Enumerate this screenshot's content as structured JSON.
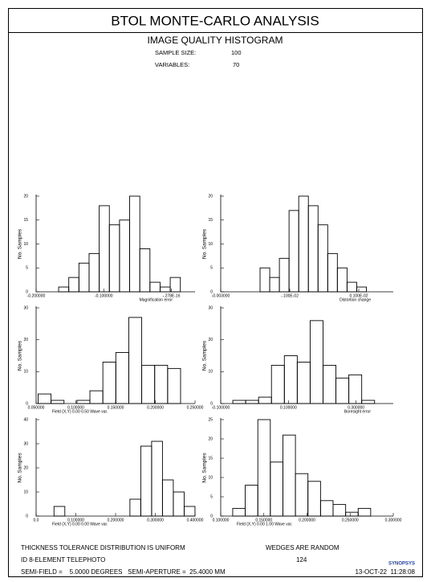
{
  "header": {
    "title": "BTOL MONTE-CARLO ANALYSIS",
    "subtitle": "IMAGE QUALITY HISTOGRAM",
    "sample_size_label": "SAMPLE SIZE:",
    "sample_size": 100,
    "variables_label": "VARIABLES:",
    "variables": 70
  },
  "chart_data": [
    {
      "type": "histogram",
      "xlabel": "Magnification error",
      "ylabel": "No. Samples",
      "bins": [
        -0.1667,
        -0.1517,
        -0.1367,
        -0.1217,
        -0.1067,
        -0.0917,
        -0.0767,
        -0.0617,
        -0.0467,
        -0.0317,
        -0.0167,
        -0.0017,
        0.0133
      ],
      "values": [
        1,
        3,
        6,
        8,
        18,
        14,
        15,
        20,
        9,
        2,
        1,
        3
      ],
      "xlim": [
        -0.2,
        0.035
      ],
      "xticks": [
        {
          "value": -0.2,
          "label": "-0.200000"
        },
        {
          "value": -0.1,
          "label": "-0.100000"
        },
        {
          "value": -2.78e-16,
          "label": "-.278E-16"
        }
      ],
      "ylim": [
        0,
        20
      ],
      "yticks": [
        0,
        5,
        10,
        15,
        20
      ],
      "color": "#000000"
    },
    {
      "type": "histogram",
      "xlabel": "Distortion change",
      "ylabel": "No. Samples",
      "bins": [
        -0.00186,
        -0.00158,
        -0.0013,
        -0.00102,
        -0.00074,
        -0.00046,
        -0.00018,
        0.0001,
        0.00038,
        0.00066,
        0.00094,
        0.00122
      ],
      "values": [
        5,
        3,
        7,
        17,
        20,
        18,
        14,
        8,
        5,
        2,
        1
      ],
      "xlim": [
        -0.003,
        0.002
      ],
      "xticks": [
        {
          "value": -0.003,
          "label": "-0.003000"
        },
        {
          "value": -0.001,
          "label": "-.100E-02"
        },
        {
          "value": 0.001,
          "label": "0.100E-02"
        }
      ],
      "ylim": [
        0,
        20
      ],
      "yticks": [
        0,
        5,
        10,
        15,
        20
      ],
      "color": "#000000"
    },
    {
      "type": "histogram",
      "xlabel": "Field (X,Y) 0.00 0.50 Wave var.",
      "ylabel": "No. Samples",
      "bins": [
        0.0525,
        0.0688,
        0.0851,
        0.1014,
        0.1177,
        0.134,
        0.1503,
        0.1666,
        0.1829,
        0.1992,
        0.2155,
        0.2318
      ],
      "values": [
        3,
        1,
        0,
        1,
        4,
        13,
        16,
        27,
        12,
        12,
        11
      ],
      "xlim": [
        0.05,
        0.25
      ],
      "xticks": [
        {
          "value": 0.05,
          "label": "0.050000"
        },
        {
          "value": 0.1,
          "label": "0.100000"
        },
        {
          "value": 0.15,
          "label": "0.150000"
        },
        {
          "value": 0.2,
          "label": "0.200000"
        },
        {
          "value": 0.25,
          "label": "0.250000"
        }
      ],
      "ylim": [
        0,
        30
      ],
      "yticks": [
        0,
        10,
        20,
        30
      ],
      "color": "#000000"
    },
    {
      "type": "histogram",
      "xlabel": "Boresight error",
      "ylabel": "No. Samples",
      "bins": [
        -0.0643,
        -0.0262,
        0.0119,
        0.05,
        0.0881,
        0.1262,
        0.1643,
        0.2024,
        0.2405,
        0.2786,
        0.3167,
        0.3548
      ],
      "values": [
        1,
        1,
        2,
        12,
        15,
        13,
        26,
        12,
        8,
        9,
        1
      ],
      "xlim": [
        -0.1,
        0.41
      ],
      "xticks": [
        {
          "value": -0.1,
          "label": "-0.100000"
        },
        {
          "value": 0.1,
          "label": "0.100000"
        },
        {
          "value": 0.3,
          "label": "0.300000"
        }
      ],
      "ylim": [
        0,
        30
      ],
      "yticks": [
        0,
        10,
        20,
        30
      ],
      "color": "#000000"
    },
    {
      "type": "histogram",
      "xlabel": "Field (X,Y) 0.00 0.00 Wave var.",
      "ylabel": "No. Samples",
      "bins": [
        0.045,
        0.0723,
        0.0996,
        0.1269,
        0.1542,
        0.1815,
        0.2088,
        0.2361,
        0.2634,
        0.2907,
        0.318,
        0.3453,
        0.3726,
        0.3999
      ],
      "values": [
        4,
        0,
        0,
        0,
        0,
        0,
        0,
        7,
        29,
        31,
        15,
        10,
        4
      ],
      "xlim": [
        0,
        0.4
      ],
      "xticks": [
        {
          "value": 0,
          "label": "0.0"
        },
        {
          "value": 0.1,
          "label": "0.100000"
        },
        {
          "value": 0.2,
          "label": "0.200000"
        },
        {
          "value": 0.3,
          "label": "0.300000"
        },
        {
          "value": 0.4,
          "label": "0.400000"
        }
      ],
      "ylim": [
        0,
        40
      ],
      "yticks": [
        0,
        10,
        20,
        30,
        40
      ],
      "color": "#000000"
    },
    {
      "type": "histogram",
      "xlabel": "Field (X,Y) 0.00 1.00 Wave var.",
      "ylabel": "No. Samples",
      "bins": [
        0.1139,
        0.1284,
        0.143,
        0.1575,
        0.1721,
        0.1866,
        0.2011,
        0.2157,
        0.2302,
        0.2448,
        0.2593,
        0.2738
      ],
      "values": [
        2,
        8,
        25,
        14,
        21,
        11,
        9,
        4,
        3,
        1,
        2
      ],
      "xlim": [
        0.1,
        0.3
      ],
      "xticks": [
        {
          "value": 0.1,
          "label": "0.100000"
        },
        {
          "value": 0.15,
          "label": "0.150000"
        },
        {
          "value": 0.2,
          "label": "0.200000"
        },
        {
          "value": 0.25,
          "label": "0.250000"
        },
        {
          "value": 0.3,
          "label": "0.300000"
        }
      ],
      "ylim": [
        0,
        25
      ],
      "yticks": [
        0,
        5,
        10,
        15,
        20,
        25
      ],
      "color": "#000000"
    }
  ],
  "footer": {
    "distribution": "THICKNESS TOLERANCE DISTRIBUTION IS UNIFORM",
    "wedges": "WEDGES ARE RANDOM",
    "lens_id": "ID 8-ELEMENT TELEPHOTO",
    "page": 124,
    "semi_field": "SEMI-FIELD =    5.0000 DEGREES   SEMI-APERTURE =  25.4000 MM",
    "logo": "SYNOPSYS",
    "date": "13-OCT-22  11:28:08"
  }
}
